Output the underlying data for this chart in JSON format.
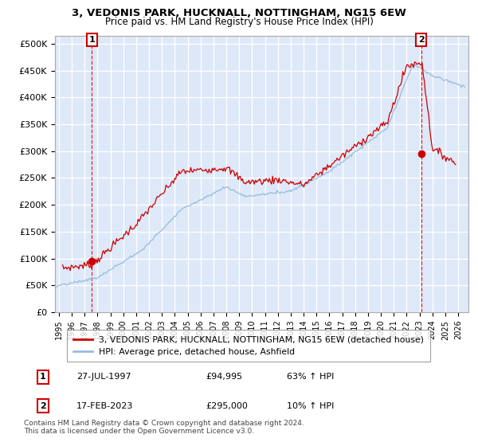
{
  "title": "3, VEDONIS PARK, HUCKNALL, NOTTINGHAM, NG15 6EW",
  "subtitle": "Price paid vs. HM Land Registry's House Price Index (HPI)",
  "ylabel_ticks": [
    "£0",
    "£50K",
    "£100K",
    "£150K",
    "£200K",
    "£250K",
    "£300K",
    "£350K",
    "£400K",
    "£450K",
    "£500K"
  ],
  "ytick_values": [
    0,
    50000,
    100000,
    150000,
    200000,
    250000,
    300000,
    350000,
    400000,
    450000,
    500000
  ],
  "ylim": [
    0,
    515000
  ],
  "xlim_start": 1994.7,
  "xlim_end": 2026.8,
  "xticks": [
    1995,
    1996,
    1997,
    1998,
    1999,
    2000,
    2001,
    2002,
    2003,
    2004,
    2005,
    2006,
    2007,
    2008,
    2009,
    2010,
    2011,
    2012,
    2013,
    2014,
    2015,
    2016,
    2017,
    2018,
    2019,
    2020,
    2021,
    2022,
    2023,
    2024,
    2025,
    2026
  ],
  "red_line_color": "#cc0000",
  "blue_line_color": "#99bbdd",
  "marker_color": "#cc0000",
  "sale1_x": 1997.57,
  "sale1_y": 94995,
  "sale2_x": 2023.12,
  "sale2_y": 295000,
  "legend_line1": "3, VEDONIS PARK, HUCKNALL, NOTTINGHAM, NG15 6EW (detached house)",
  "legend_line2": "HPI: Average price, detached house, Ashfield",
  "table_row1": [
    "1",
    "27-JUL-1997",
    "£94,995",
    "63% ↑ HPI"
  ],
  "table_row2": [
    "2",
    "17-FEB-2023",
    "£295,000",
    "10% ↑ HPI"
  ],
  "footnote": "Contains HM Land Registry data © Crown copyright and database right 2024.\nThis data is licensed under the Open Government Licence v3.0.",
  "plot_bg_color": "#dde8f8",
  "grid_color": "#ffffff"
}
